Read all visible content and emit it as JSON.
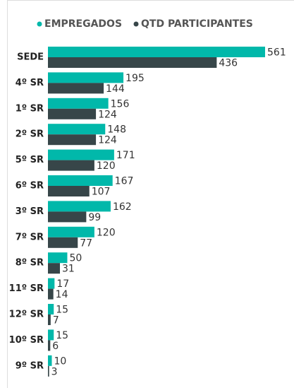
{
  "chart_data": {
    "type": "bar",
    "orientation": "horizontal",
    "categories": [
      "SEDE",
      "4º SR",
      "1º SR",
      "2º SR",
      "5º SR",
      "6º SR",
      "3º SR",
      "7º SR",
      "8º SR",
      "11º SR",
      "12º SR",
      "10º SR",
      "9º SR"
    ],
    "series": [
      {
        "name": "EMPREGADOS",
        "color": "#01b8aa",
        "values": [
          561,
          195,
          156,
          148,
          171,
          167,
          162,
          120,
          50,
          17,
          15,
          15,
          10
        ]
      },
      {
        "name": "QTD PARTICIPANTES",
        "color": "#374649",
        "values": [
          436,
          144,
          124,
          124,
          120,
          107,
          99,
          77,
          31,
          14,
          7,
          6,
          3
        ]
      }
    ],
    "legend": "top"
  }
}
